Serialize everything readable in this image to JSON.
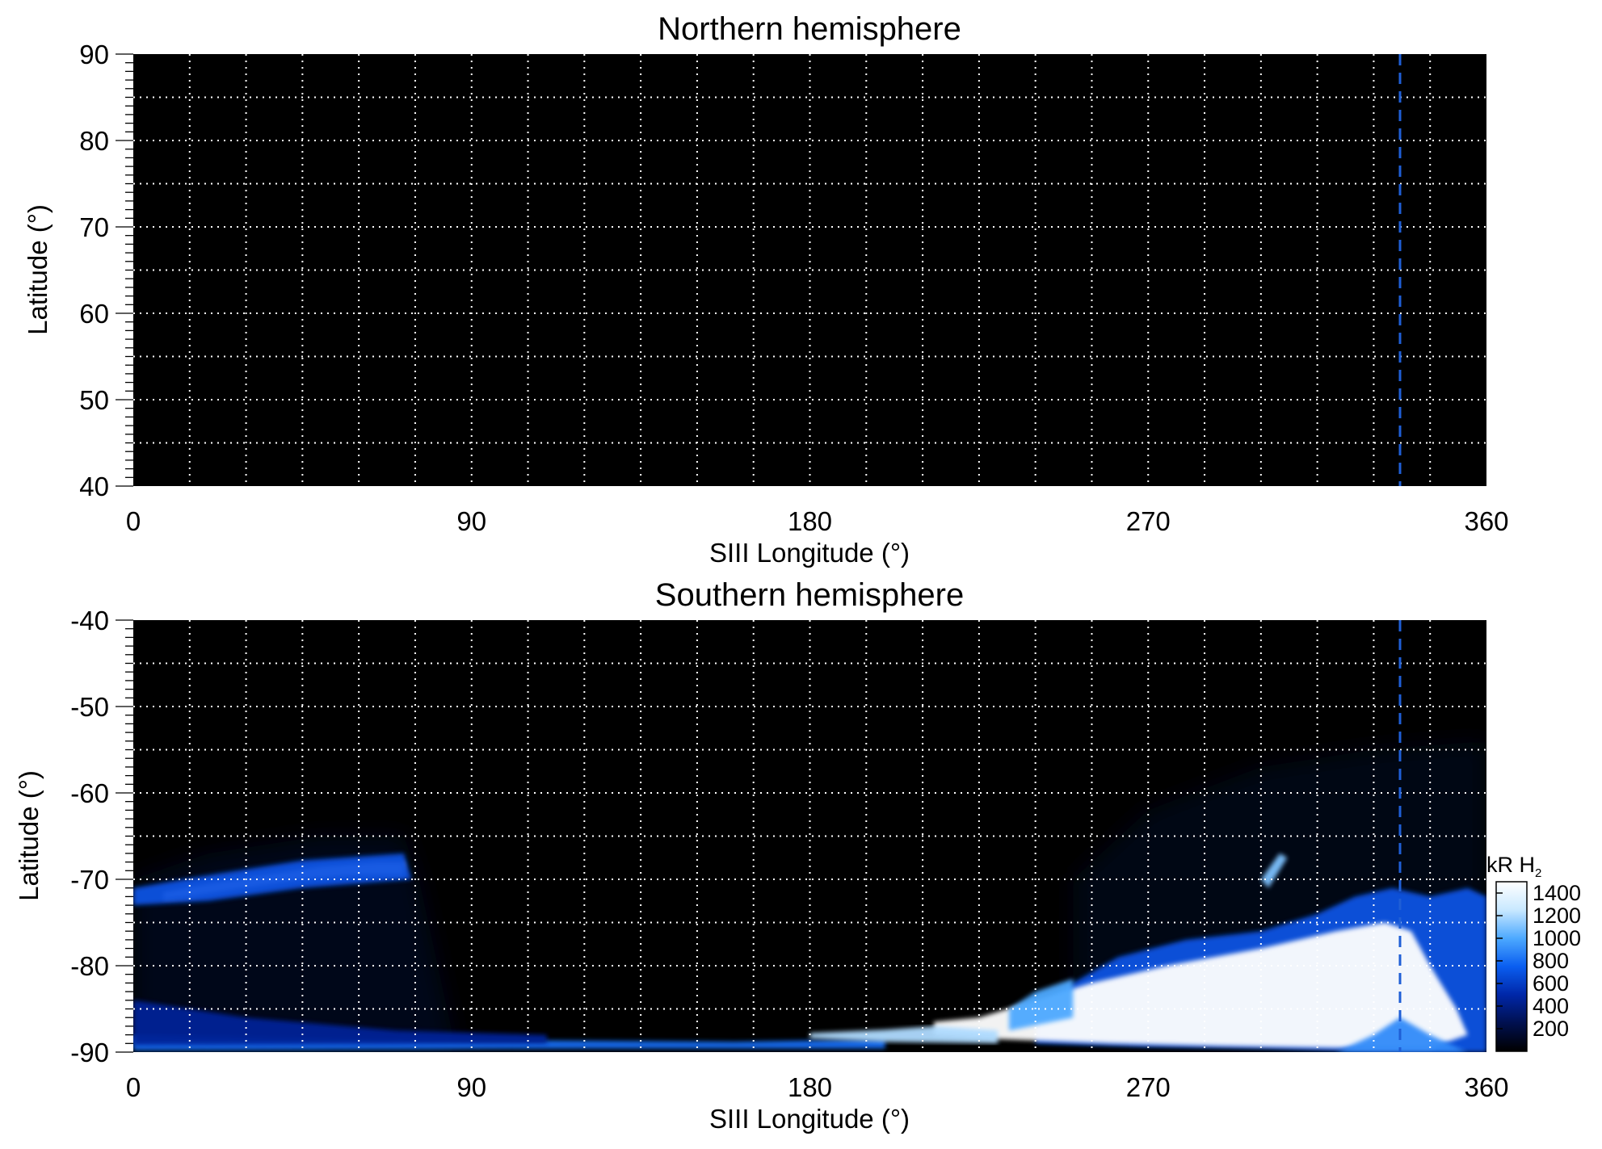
{
  "chart_data": [
    {
      "type": "heatmap",
      "title": "Northern hemisphere",
      "xlabel": "SIII Longitude (°)",
      "ylabel": "Latitude (°)",
      "xlim": [
        0,
        360
      ],
      "ylim": [
        40,
        90
      ],
      "x_ticks": [
        0,
        90,
        180,
        270,
        360
      ],
      "x_tick_labels": [
        "0",
        "90",
        "180",
        "270",
        "360"
      ],
      "y_ticks": [
        40,
        50,
        60,
        70,
        80,
        90
      ],
      "y_tick_labels": [
        "40",
        "50",
        "60",
        "70",
        "80",
        "90"
      ],
      "grid": true,
      "grid_style": "dotted white",
      "grid_x_step": 15,
      "grid_y_step": 5,
      "background": "#000000",
      "marker_line": {
        "x": 337,
        "style": "dashed",
        "color": "#1f5fd6"
      },
      "emission_regions": []
    },
    {
      "type": "heatmap",
      "title": "Southern hemisphere",
      "xlabel": "SIII Longitude (°)",
      "ylabel": "Latitude (°)",
      "xlim": [
        0,
        360
      ],
      "ylim": [
        -90,
        -40
      ],
      "x_ticks": [
        0,
        90,
        180,
        270,
        360
      ],
      "x_tick_labels": [
        "0",
        "90",
        "180",
        "270",
        "360"
      ],
      "y_ticks": [
        -90,
        -80,
        -70,
        -60,
        -50,
        -40
      ],
      "y_tick_labels": [
        "-90",
        "-80",
        "-70",
        "-60",
        "-50",
        "-40"
      ],
      "grid": true,
      "grid_style": "dotted white",
      "grid_x_step": 15,
      "grid_y_step": 5,
      "background": "#000000",
      "marker_line": {
        "x": 337,
        "style": "dashed",
        "color": "#1f5fd6"
      },
      "emission_regions": [
        {
          "name": "faint-haze-west",
          "intensity": 150,
          "points": [
            [
              0,
              -70
            ],
            [
              20,
              -67
            ],
            [
              50,
              -65
            ],
            [
              72,
              -65
            ],
            [
              76,
              -70
            ],
            [
              80,
              -78
            ],
            [
              84,
              -86
            ],
            [
              86,
              -90
            ],
            [
              0,
              -90
            ]
          ]
        },
        {
          "name": "faint-haze-east",
          "intensity": 120,
          "points": [
            [
              250,
              -88
            ],
            [
              250,
              -70
            ],
            [
              270,
              -62
            ],
            [
              300,
              -57
            ],
            [
              330,
              -55
            ],
            [
              360,
              -54
            ],
            [
              360,
              -90
            ]
          ]
        },
        {
          "name": "arc-west",
          "intensity": 1500,
          "points": [
            [
              8,
              -71.5
            ],
            [
              20,
              -70.5
            ],
            [
              35,
              -69.5
            ],
            [
              50,
              -68.5
            ],
            [
              65,
              -68
            ],
            [
              72,
              -68
            ],
            [
              72,
              -69.5
            ],
            [
              60,
              -69.5
            ],
            [
              45,
              -70
            ],
            [
              30,
              -71
            ],
            [
              15,
              -72
            ],
            [
              8,
              -72.3
            ]
          ]
        },
        {
          "name": "arc-west-glow",
          "intensity": 700,
          "points": [
            [
              0,
              -71
            ],
            [
              20,
              -69.5
            ],
            [
              45,
              -67.8
            ],
            [
              72,
              -67
            ],
            [
              74,
              -70
            ],
            [
              45,
              -71
            ],
            [
              20,
              -72.5
            ],
            [
              0,
              -73
            ]
          ]
        },
        {
          "name": "south-band-west",
          "intensity": 800,
          "points": [
            [
              0,
              -88
            ],
            [
              40,
              -88.4
            ],
            [
              90,
              -88.6
            ],
            [
              160,
              -88.8
            ],
            [
              200,
              -88.5
            ],
            [
              200,
              -89.6
            ],
            [
              120,
              -89.6
            ],
            [
              60,
              -89.7
            ],
            [
              0,
              -89.8
            ]
          ]
        },
        {
          "name": "south-band-west-glow",
          "intensity": 450,
          "points": [
            [
              0,
              -84
            ],
            [
              30,
              -86
            ],
            [
              70,
              -87.5
            ],
            [
              110,
              -88
            ],
            [
              110,
              -89
            ],
            [
              0,
              -89.2
            ]
          ]
        },
        {
          "name": "oval-outer",
          "intensity": 700,
          "points": [
            [
              240,
              -85
            ],
            [
              250,
              -82
            ],
            [
              262,
              -79
            ],
            [
              280,
              -77
            ],
            [
              300,
              -76
            ],
            [
              315,
              -74
            ],
            [
              325,
              -72
            ],
            [
              335,
              -71
            ],
            [
              345,
              -72
            ],
            [
              355,
              -71
            ],
            [
              360,
              -72
            ],
            [
              360,
              -90
            ],
            [
              330,
              -90
            ],
            [
              300,
              -89.6
            ],
            [
              270,
              -89.4
            ],
            [
              240,
              -89
            ]
          ]
        },
        {
          "name": "oval-bright",
          "intensity": 1500,
          "points": [
            [
              213,
              -86.5
            ],
            [
              225,
              -86
            ],
            [
              240,
              -84
            ],
            [
              255,
              -82
            ],
            [
              275,
              -80
            ],
            [
              300,
              -78
            ],
            [
              320,
              -76
            ],
            [
              333,
              -75
            ],
            [
              340,
              -76
            ],
            [
              345,
              -80
            ],
            [
              352,
              -85
            ],
            [
              355,
              -88
            ],
            [
              345,
              -89.5
            ],
            [
              320,
              -89.5
            ],
            [
              290,
              -89.3
            ],
            [
              260,
              -89
            ],
            [
              230,
              -88.5
            ],
            [
              213,
              -88
            ]
          ]
        },
        {
          "name": "oval-streaks",
          "intensity": 1000,
          "points": [
            [
              233,
              -85
            ],
            [
              240,
              -83
            ],
            [
              250,
              -81.5
            ],
            [
              250,
              -86
            ],
            [
              233,
              -87.5
            ]
          ]
        },
        {
          "name": "oval-tail",
          "intensity": 1200,
          "points": [
            [
              180,
              -87.8
            ],
            [
              200,
              -87.4
            ],
            [
              213,
              -87
            ],
            [
              230,
              -87.5
            ],
            [
              230,
              -89
            ],
            [
              200,
              -88.8
            ],
            [
              180,
              -88.4
            ]
          ]
        },
        {
          "name": "oval-spur",
          "intensity": 1100,
          "points": [
            [
              300,
              -70
            ],
            [
              305,
              -67
            ],
            [
              307,
              -67.5
            ],
            [
              302,
              -71
            ]
          ]
        },
        {
          "name": "south-pole-glow",
          "intensity": 900,
          "points": [
            [
              320,
              -90
            ],
            [
              330,
              -88
            ],
            [
              337,
              -86
            ],
            [
              345,
              -88
            ],
            [
              355,
              -90
            ]
          ]
        }
      ]
    }
  ],
  "colorbar": {
    "unit_label": "kR H",
    "unit_subscript": "2",
    "ticks": [
      200,
      400,
      600,
      800,
      1000,
      1200,
      1400
    ],
    "tick_labels": [
      "200",
      "400",
      "600",
      "800",
      "1000",
      "1200",
      "1400"
    ],
    "range": [
      0,
      1500
    ],
    "colors": [
      "#000000",
      "#00104f",
      "#0027a8",
      "#0a5ef0",
      "#4da9ff",
      "#c8e8ff",
      "#ffffff"
    ]
  }
}
